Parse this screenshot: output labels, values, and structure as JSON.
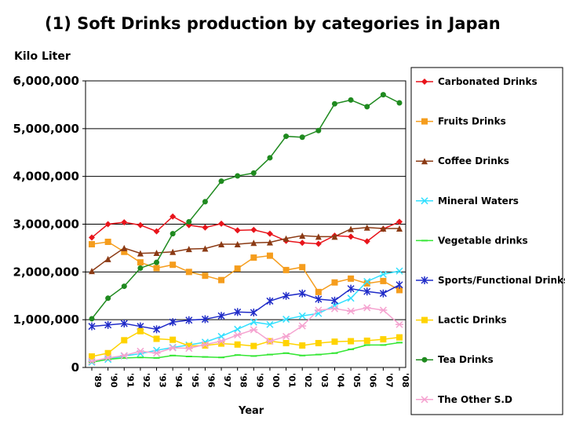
{
  "chart_data": {
    "type": "line",
    "title": "(1) Soft Drinks production by categories in Japan",
    "ylabel": "Kilo Liter",
    "xlabel": "Year",
    "ylim": [
      0,
      6000000
    ],
    "yticks": [
      0,
      1000000,
      2000000,
      3000000,
      4000000,
      5000000,
      6000000
    ],
    "ytick_labels": [
      "0",
      "1,000,000",
      "2,000,000",
      "3,000,000",
      "4,000,000",
      "5,000,000",
      "6,000,000"
    ],
    "grid": "horizontal major gridlines",
    "legend_position": "right",
    "categories": [
      "'89",
      "'90",
      "'91",
      "'92",
      "'93",
      "'94",
      "'95",
      "'96",
      "'97",
      "'98",
      "'99",
      "'00",
      "'01",
      "'02",
      "'03",
      "'04",
      "'05",
      "'06",
      "'07",
      "'08"
    ],
    "series": [
      {
        "name": "Carbonated Drinks",
        "color": "#e8141b",
        "marker": "diamond",
        "values": [
          2720000,
          3000000,
          3040000,
          2980000,
          2850000,
          3160000,
          2980000,
          2930000,
          3010000,
          2870000,
          2880000,
          2800000,
          2650000,
          2610000,
          2590000,
          2760000,
          2740000,
          2640000,
          2900000,
          3050000
        ]
      },
      {
        "name": "Fruits Drinks",
        "color": "#f59d1d",
        "marker": "square",
        "values": [
          2580000,
          2630000,
          2420000,
          2200000,
          2080000,
          2150000,
          2000000,
          1920000,
          1830000,
          2070000,
          2300000,
          2340000,
          2040000,
          2100000,
          1580000,
          1780000,
          1860000,
          1760000,
          1810000,
          1620000
        ]
      },
      {
        "name": "Coffee Drinks",
        "color": "#8b3a14",
        "marker": "triangle",
        "values": [
          2020000,
          2270000,
          2500000,
          2390000,
          2400000,
          2420000,
          2480000,
          2490000,
          2580000,
          2580000,
          2610000,
          2620000,
          2700000,
          2760000,
          2740000,
          2740000,
          2900000,
          2930000,
          2910000,
          2910000
        ]
      },
      {
        "name": "Mineral Waters",
        "color": "#33e0ff",
        "marker": "x",
        "values": [
          110000,
          170000,
          240000,
          290000,
          360000,
          420000,
          470000,
          530000,
          650000,
          800000,
          950000,
          900000,
          1010000,
          1080000,
          1130000,
          1300000,
          1450000,
          1800000,
          1950000,
          2020000
        ]
      },
      {
        "name": "Vegetable drinks",
        "color": "#33e633",
        "marker": "dash",
        "values": [
          110000,
          170000,
          200000,
          210000,
          200000,
          250000,
          230000,
          220000,
          210000,
          260000,
          240000,
          270000,
          300000,
          250000,
          270000,
          300000,
          380000,
          470000,
          470000,
          520000
        ]
      },
      {
        "name": "Sports/Functional Drinks",
        "color": "#1f2bc8",
        "marker": "star",
        "values": [
          860000,
          890000,
          920000,
          860000,
          800000,
          950000,
          990000,
          1010000,
          1080000,
          1160000,
          1150000,
          1390000,
          1500000,
          1550000,
          1430000,
          1400000,
          1650000,
          1590000,
          1550000,
          1730000
        ]
      },
      {
        "name": "Lactic Drinks",
        "color": "#ffd300",
        "marker": "square",
        "values": [
          230000,
          300000,
          570000,
          760000,
          600000,
          580000,
          450000,
          460000,
          500000,
          480000,
          450000,
          550000,
          510000,
          460000,
          510000,
          540000,
          550000,
          560000,
          590000,
          630000
        ]
      },
      {
        "name": "Tea Drinks",
        "color": "#1f8a1f",
        "marker": "circle",
        "values": [
          1020000,
          1450000,
          1700000,
          2080000,
          2200000,
          2800000,
          3050000,
          3470000,
          3900000,
          4010000,
          4070000,
          4390000,
          4840000,
          4820000,
          4960000,
          5520000,
          5600000,
          5460000,
          5710000,
          5540000
        ]
      },
      {
        "name": "The Other S.D",
        "color": "#f5a3d0",
        "marker": "asterisk",
        "values": [
          130000,
          200000,
          250000,
          340000,
          300000,
          410000,
          400000,
          480000,
          550000,
          680000,
          790000,
          550000,
          650000,
          870000,
          1200000,
          1230000,
          1180000,
          1250000,
          1200000,
          900000
        ]
      }
    ]
  }
}
